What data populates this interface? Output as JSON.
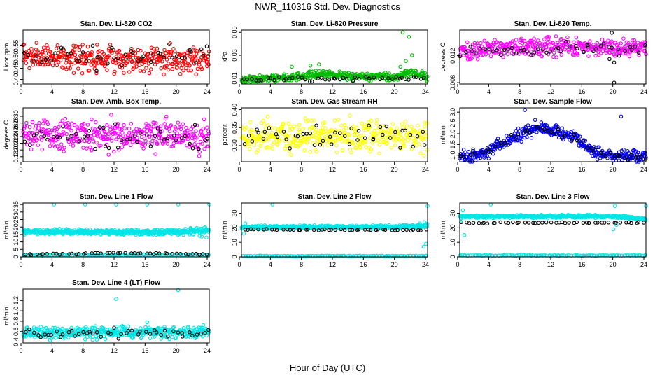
{
  "figure": {
    "title": "NWR_110316  Std. Dev. Diagnostics",
    "xlabel": "Hour of Day (UTC)"
  },
  "chart_data": [
    {
      "type": "scatter",
      "title": "Stan. Dev. Li-820 CO2",
      "ylabel": "Licor ppm",
      "xlim": [
        0,
        24
      ],
      "xticks": [
        "0",
        "4",
        "8",
        "12",
        "16",
        "20",
        "24"
      ],
      "ylim": [
        0.38,
        0.62
      ],
      "yticks": [
        0.4,
        0.45,
        0.5,
        0.55
      ],
      "ytick_labels": [
        "0.40",
        "0.45",
        "0.50",
        "0.55"
      ],
      "series": [
        {
          "name": "all",
          "color": "#ff0000",
          "n": 420,
          "base": [
            [
              0,
              0.5
            ],
            [
              24,
              0.49
            ]
          ],
          "spread": 0.035
        },
        {
          "name": "hourly",
          "color": "#000000",
          "n": 48,
          "base": [
            [
              0,
              0.5
            ],
            [
              24,
              0.5
            ]
          ],
          "spread": 0.03
        }
      ]
    },
    {
      "type": "scatter",
      "title": "Stan. Dev. Li-820 Pressure",
      "ylabel": "kPa",
      "xlim": [
        0,
        24
      ],
      "xticks": [
        "0",
        "4",
        "8",
        "12",
        "16",
        "20",
        "24"
      ],
      "ylim": [
        0.005,
        0.052
      ],
      "yticks": [
        0.01,
        0.03,
        0.05
      ],
      "ytick_labels": [
        "0.01",
        "0.03",
        "0.05"
      ],
      "series": [
        {
          "name": "all",
          "color": "#00bb00",
          "n": 420,
          "base": [
            [
              0,
              0.009
            ],
            [
              8,
              0.011
            ],
            [
              10,
              0.014
            ],
            [
              14,
              0.012
            ],
            [
              20,
              0.011
            ],
            [
              22,
              0.016
            ],
            [
              24,
              0.01
            ]
          ],
          "spread": 0.002
        },
        {
          "name": "hourly",
          "color": "#000000",
          "n": 48,
          "base": [
            [
              0,
              0.009
            ],
            [
              24,
              0.01
            ]
          ],
          "spread": 0.0012
        },
        {
          "name": "outliers",
          "color": "#00bb00",
          "n": 0,
          "points": [
            [
              20.8,
              0.05
            ],
            [
              21.6,
              0.046
            ],
            [
              21.2,
              0.025
            ],
            [
              20.5,
              0.02
            ],
            [
              22.0,
              0.03
            ],
            [
              10.0,
              0.022
            ],
            [
              6.5,
              0.02
            ],
            [
              8.9,
              0.021
            ]
          ]
        }
      ]
    },
    {
      "type": "scatter",
      "title": "Stan. Dev. Li-820 Temp.",
      "ylabel": "degrees C",
      "xlim": [
        0,
        24
      ],
      "xticks": [
        "0",
        "4",
        "8",
        "12",
        "16",
        "20",
        "24"
      ],
      "ylim": [
        0.0078,
        0.0158
      ],
      "yticks": [
        0.008,
        0.012
      ],
      "ytick_labels": [
        "0.008",
        "0.012"
      ],
      "series": [
        {
          "name": "all",
          "color": "#ff00ff",
          "n": 420,
          "base": [
            [
              0,
              0.0128
            ],
            [
              4,
              0.013
            ],
            [
              12,
              0.0134
            ],
            [
              20,
              0.0132
            ],
            [
              24,
              0.0131
            ]
          ],
          "spread": 0.0008
        },
        {
          "name": "hourly",
          "color": "#000000",
          "n": 48,
          "base": [
            [
              0,
              0.0128
            ],
            [
              24,
              0.0131
            ]
          ],
          "spread": 0.0005
        },
        {
          "name": "outliers",
          "color": "#000000",
          "n": 0,
          "points": [
            [
              19.6,
              0.0154
            ],
            [
              19.9,
              0.008
            ],
            [
              19.9,
              0.011
            ],
            [
              19.3,
              0.0115
            ]
          ]
        }
      ]
    },
    {
      "type": "scatter",
      "title": "Stan. Dev. Amb. Box Temp.",
      "ylabel": "degrees C",
      "xlim": [
        0,
        24
      ],
      "xticks": [
        "0",
        "4",
        "8",
        "12",
        "16",
        "20",
        "24"
      ],
      "ylim": [
        0.165,
        0.325
      ],
      "yticks": [
        0.18,
        0.2,
        0.22,
        0.24,
        0.26,
        0.28,
        0.3
      ],
      "ytick_labels": [
        "0.18",
        "0.20",
        "0.22",
        "0.24",
        "0.26",
        "0.28",
        "0.30"
      ],
      "series": [
        {
          "name": "all",
          "color": "#ff00ff",
          "n": 420,
          "base": [
            [
              0,
              0.245
            ],
            [
              24,
              0.242
            ]
          ],
          "spread": 0.028
        },
        {
          "name": "hourly",
          "color": "#000000",
          "n": 48,
          "base": [
            [
              0,
              0.24
            ],
            [
              24,
              0.24
            ]
          ],
          "spread": 0.025
        }
      ]
    },
    {
      "type": "scatter",
      "title": "Stan. Dev. Gas Stream RH",
      "ylabel": "percent",
      "xlim": [
        0,
        24
      ],
      "xticks": [
        "0",
        "4",
        "8",
        "12",
        "16",
        "20",
        "24"
      ],
      "ylim": [
        0.255,
        0.405
      ],
      "yticks": [
        0.3,
        0.35,
        0.4
      ],
      "ytick_labels": [
        "0.30",
        "0.35",
        "0.40"
      ],
      "series": [
        {
          "name": "all",
          "color": "#ffff00",
          "n": 420,
          "base": [
            [
              0,
              0.325
            ],
            [
              24,
              0.328
            ]
          ],
          "spread": 0.025
        },
        {
          "name": "hourly",
          "color": "#000000",
          "n": 48,
          "base": [
            [
              0,
              0.325
            ],
            [
              24,
              0.33
            ]
          ],
          "spread": 0.02
        }
      ]
    },
    {
      "type": "scatter",
      "title": "Stan. Dev. Sample Flow",
      "ylabel": "ml/min",
      "xlim": [
        0,
        24
      ],
      "xticks": [
        "0",
        "4",
        "8",
        "12",
        "16",
        "20",
        "24"
      ],
      "ylim": [
        0.7,
        3.2
      ],
      "yticks": [
        1.0,
        1.5,
        2.0,
        2.5,
        3.0
      ],
      "ytick_labels": [
        "1.0",
        "1.5",
        "2.0",
        "2.5",
        "3.0"
      ],
      "series": [
        {
          "name": "all",
          "color": "#0000ee",
          "n": 420,
          "base": [
            [
              0,
              0.95
            ],
            [
              3,
              1.05
            ],
            [
              5,
              1.5
            ],
            [
              8,
              2.0
            ],
            [
              10,
              2.3
            ],
            [
              12,
              2.15
            ],
            [
              15,
              1.8
            ],
            [
              17,
              1.3
            ],
            [
              18,
              1.05
            ],
            [
              24,
              0.95
            ]
          ],
          "spread": 0.18
        },
        {
          "name": "hourly",
          "color": "#000000",
          "n": 48,
          "base": [
            [
              0,
              0.95
            ],
            [
              3,
              1.05
            ],
            [
              5,
              1.5
            ],
            [
              8,
              2.0
            ],
            [
              10,
              2.3
            ],
            [
              12,
              2.15
            ],
            [
              15,
              1.8
            ],
            [
              17,
              1.3
            ],
            [
              18,
              1.05
            ],
            [
              24,
              0.95
            ]
          ],
          "spread": 0.12
        },
        {
          "name": "outliers",
          "color": "#0000ee",
          "n": 0,
          "points": [
            [
              8.4,
              3.1
            ],
            [
              20.8,
              2.8
            ]
          ]
        }
      ]
    },
    {
      "type": "scatter",
      "title": "Stan. Dev. Line 1 Flow",
      "ylabel": "ml/min",
      "xlim": [
        0,
        24
      ],
      "xticks": [
        "0",
        "4",
        "8",
        "12",
        "16",
        "20",
        "24"
      ],
      "ylim": [
        0,
        36
      ],
      "yticks": [
        0,
        5,
        10,
        15,
        20,
        25,
        30,
        35
      ],
      "ytick_labels": [
        "0",
        "5",
        "10",
        "15",
        "20",
        "25",
        "30",
        "35"
      ],
      "series": [
        {
          "name": "all",
          "color": "#00e5e5",
          "n": 480,
          "base": [
            [
              0,
              17
            ],
            [
              18,
              16.5
            ],
            [
              20,
              17
            ],
            [
              24,
              18
            ]
          ],
          "spread": 1.0
        },
        {
          "name": "low",
          "color": "#00e5e5",
          "n": 120,
          "base": [
            [
              0,
              1.3
            ],
            [
              24,
              1.3
            ]
          ],
          "spread": 0.25
        },
        {
          "name": "branch",
          "color": "#00e5e5",
          "n": 40,
          "base": [
            [
              19,
              16
            ],
            [
              24,
              13
            ]
          ],
          "spread": 0.8
        },
        {
          "name": "hourly",
          "color": "#000000",
          "n": 48,
          "base": [
            [
              0,
              1.6
            ],
            [
              12,
              2.5
            ],
            [
              24,
              1.8
            ]
          ],
          "spread": 0.3
        },
        {
          "name": "outliers",
          "color": "#00e5e5",
          "n": 0,
          "points": [
            [
              4,
              35
            ],
            [
              8,
              35
            ],
            [
              12,
              35
            ],
            [
              16,
              35
            ],
            [
              20,
              35
            ],
            [
              24,
              35
            ]
          ]
        }
      ]
    },
    {
      "type": "scatter",
      "title": "Stan. Dev. Line 2 Flow",
      "ylabel": "ml/min",
      "xlim": [
        0,
        24
      ],
      "xticks": [
        "0",
        "4",
        "8",
        "12",
        "16",
        "20",
        "24"
      ],
      "ylim": [
        0,
        37
      ],
      "yticks": [
        0,
        10,
        20,
        30
      ],
      "ytick_labels": [
        "0",
        "10",
        "20",
        "30"
      ],
      "series": [
        {
          "name": "all",
          "color": "#00e5e5",
          "n": 450,
          "base": [
            [
              0,
              20.5
            ],
            [
              20,
              20.5
            ],
            [
              24,
              21.5
            ]
          ],
          "spread": 0.7
        },
        {
          "name": "low",
          "color": "#00e5e5",
          "n": 120,
          "base": [
            [
              0,
              0.6
            ],
            [
              24,
              0.6
            ]
          ],
          "spread": 0.15
        },
        {
          "name": "hourly",
          "color": "#000000",
          "n": 48,
          "base": [
            [
              0,
              18.8
            ],
            [
              24,
              18.5
            ]
          ],
          "spread": 0.25
        },
        {
          "name": "outliers",
          "color": "#00e5e5",
          "n": 0,
          "points": [
            [
              4,
              36
            ],
            [
              24,
              35
            ],
            [
              0.3,
              16
            ],
            [
              0.5,
              23
            ],
            [
              23.5,
              7
            ],
            [
              23.8,
              9
            ],
            [
              23.0,
              23
            ],
            [
              23.6,
              24
            ]
          ]
        }
      ]
    },
    {
      "type": "scatter",
      "title": "Stan. Dev. Line 3 Flow",
      "ylabel": "ml/min",
      "xlim": [
        0,
        24
      ],
      "xticks": [
        "0",
        "4",
        "8",
        "12",
        "16",
        "20",
        "24"
      ],
      "ylim": [
        0,
        37
      ],
      "yticks": [
        0,
        10,
        20,
        30
      ],
      "ytick_labels": [
        "0",
        "10",
        "20",
        "30"
      ],
      "series": [
        {
          "name": "all",
          "color": "#00e5e5",
          "n": 450,
          "base": [
            [
              0,
              27.8
            ],
            [
              20,
              27.8
            ],
            [
              24,
              26
            ]
          ],
          "spread": 0.6
        },
        {
          "name": "low",
          "color": "#00e5e5",
          "n": 120,
          "base": [
            [
              0,
              1.0
            ],
            [
              24,
              1.0
            ]
          ],
          "spread": 0.15
        },
        {
          "name": "hourly",
          "color": "#000000",
          "n": 48,
          "base": [
            [
              0,
              23.5
            ],
            [
              24,
              23.5
            ]
          ],
          "spread": 0.3
        },
        {
          "name": "outliers",
          "color": "#00e5e5",
          "n": 0,
          "points": [
            [
              4,
              36
            ],
            [
              20,
              35
            ],
            [
              24,
              35
            ],
            [
              0.4,
              32
            ],
            [
              0.6,
              15
            ],
            [
              0.2,
              25
            ],
            [
              19.8,
              19
            ],
            [
              20.2,
              22
            ]
          ]
        }
      ]
    },
    {
      "type": "scatter",
      "title": "Stan. Dev. Line 4 (LT) Flow",
      "ylabel": "ml/min",
      "xlim": [
        0,
        24
      ],
      "xticks": [
        "0",
        "4",
        "8",
        "12",
        "16",
        "20",
        "24"
      ],
      "ylim": [
        0.38,
        1.42
      ],
      "yticks": [
        0.4,
        0.6,
        0.8,
        1.0,
        1.2
      ],
      "ytick_labels": [
        "0.4",
        "0.6",
        "0.8",
        "1.0",
        "1.2"
      ],
      "series": [
        {
          "name": "all",
          "color": "#00e5e5",
          "n": 450,
          "base": [
            [
              0,
              0.58
            ],
            [
              24,
              0.58
            ]
          ],
          "spread": 0.07
        },
        {
          "name": "hourly",
          "color": "#000000",
          "n": 48,
          "base": [
            [
              0,
              0.58
            ],
            [
              24,
              0.58
            ]
          ],
          "spread": 0.06
        },
        {
          "name": "outliers",
          "color": "#00e5e5",
          "n": 0,
          "points": [
            [
              12,
              1.23
            ],
            [
              20,
              1.4
            ],
            [
              8,
              0.45
            ],
            [
              16,
              0.78
            ]
          ]
        }
      ]
    }
  ]
}
